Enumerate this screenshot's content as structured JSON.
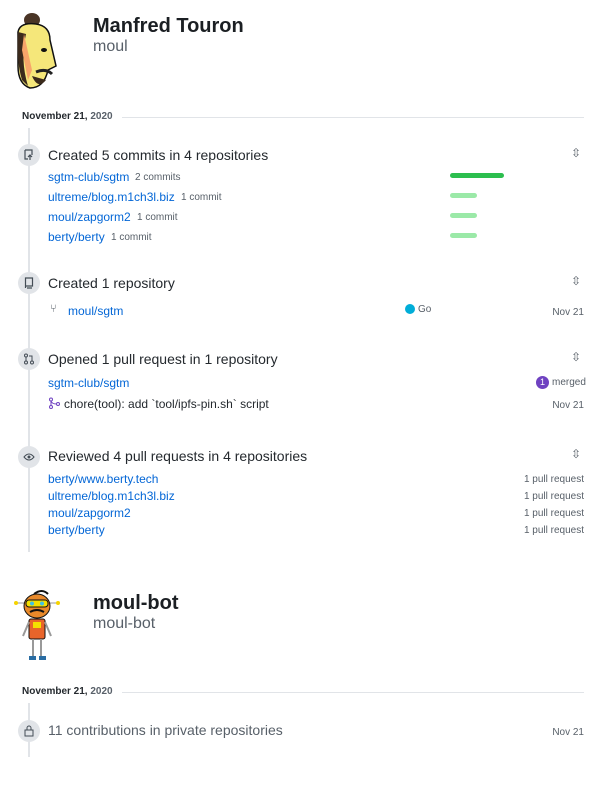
{
  "colors": {
    "link": "#0366d6",
    "bar_strong": "#2cbe4e",
    "bar_light": "#9be9a8",
    "go": "#00add8",
    "merged": "#6f42c1"
  },
  "user1": {
    "name": "Manfred Touron",
    "login": "moul",
    "date_main": "November 21,",
    "date_year": "2020",
    "commits": {
      "title": "Created 5 commits in 4 repositories",
      "items": [
        {
          "repo": "sgtm-club/sgtm",
          "count": "2 commits",
          "share": 1.0
        },
        {
          "repo": "ultreme/blog.m1ch3l.biz",
          "count": "1 commit",
          "share": 0.5
        },
        {
          "repo": "moul/zapgorm2",
          "count": "1 commit",
          "share": 0.5
        },
        {
          "repo": "berty/berty",
          "count": "1 commit",
          "share": 0.5
        }
      ]
    },
    "repos": {
      "title": "Created 1 repository",
      "repo": "moul/sgtm",
      "language": "Go",
      "date": "Nov 21"
    },
    "prs": {
      "title": "Opened 1 pull request in 1 repository",
      "repo": "sgtm-club/sgtm",
      "merged_count": "1",
      "merged_label": "merged",
      "pr_title": "chore(tool): add `tool/ipfs-pin.sh` script",
      "date": "Nov 21"
    },
    "reviews": {
      "title": "Reviewed 4 pull requests in 4 repositories",
      "items": [
        {
          "repo": "berty/www.berty.tech",
          "count": "1 pull request"
        },
        {
          "repo": "ultreme/blog.m1ch3l.biz",
          "count": "1 pull request"
        },
        {
          "repo": "moul/zapgorm2",
          "count": "1 pull request"
        },
        {
          "repo": "berty/berty",
          "count": "1 pull request"
        }
      ]
    }
  },
  "user2": {
    "name": "moul-bot",
    "login": "moul-bot",
    "date_main": "November 21,",
    "date_year": "2020",
    "private": {
      "title": "11 contributions in private repositories",
      "date": "Nov 21"
    }
  }
}
